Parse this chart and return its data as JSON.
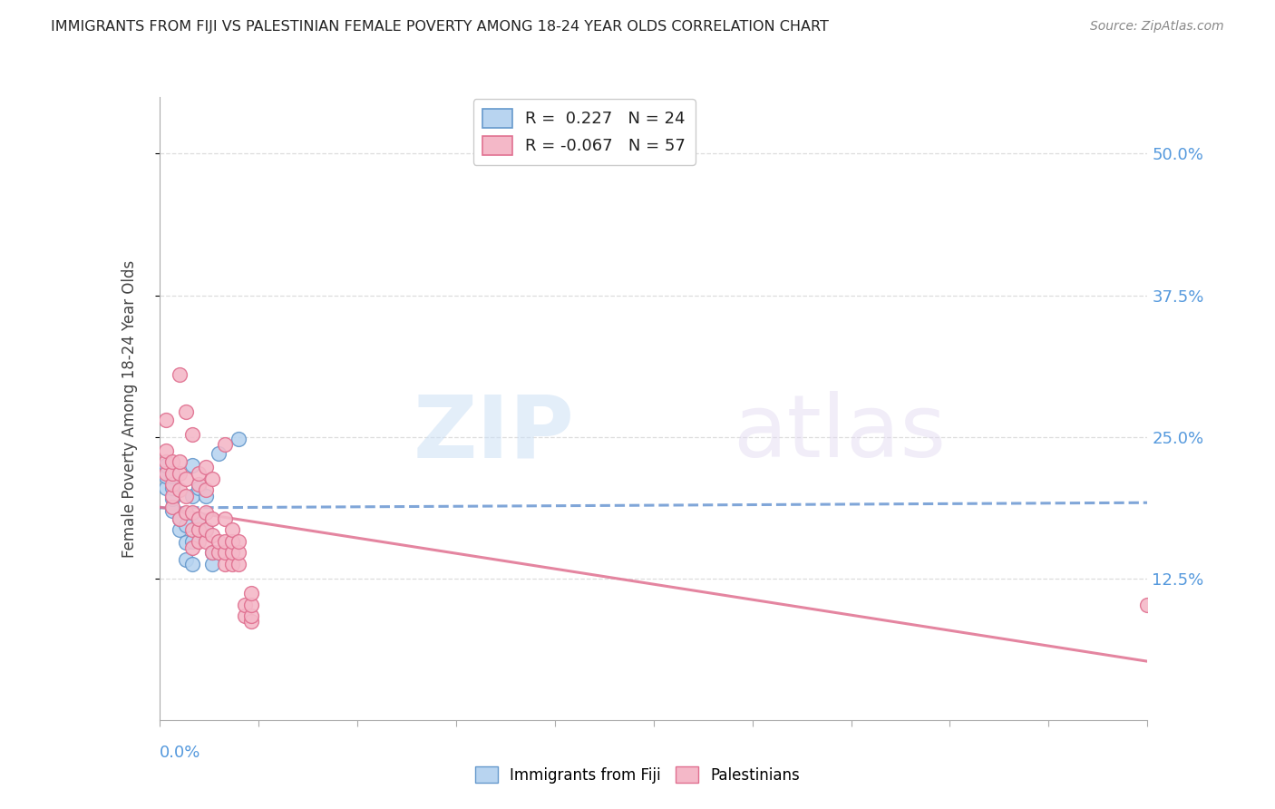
{
  "title": "IMMIGRANTS FROM FIJI VS PALESTINIAN FEMALE POVERTY AMONG 18-24 YEAR OLDS CORRELATION CHART",
  "source": "Source: ZipAtlas.com",
  "ylabel": "Female Poverty Among 18-24 Year Olds",
  "legend_fiji_r": "0.227",
  "legend_fiji_n": "24",
  "legend_pal_r": "-0.067",
  "legend_pal_n": "57",
  "fiji_color": "#b8d4f0",
  "fiji_edge_color": "#6699cc",
  "pal_color": "#f4b8c8",
  "pal_edge_color": "#e07090",
  "trend_fiji_color": "#5588cc",
  "trend_pal_color": "#e07090",
  "axis_label_color": "#5599dd",
  "xlim": [
    0.0,
    0.15
  ],
  "ylim": [
    0.0,
    0.55
  ],
  "ytick_values": [
    0.125,
    0.25,
    0.375,
    0.5
  ],
  "ytick_labels": [
    "12.5%",
    "25.0%",
    "37.5%",
    "50.0%"
  ],
  "fiji_x": [
    0.001,
    0.001,
    0.001,
    0.002,
    0.002,
    0.002,
    0.002,
    0.003,
    0.003,
    0.004,
    0.004,
    0.004,
    0.005,
    0.005,
    0.005,
    0.005,
    0.006,
    0.006,
    0.007,
    0.007,
    0.008,
    0.008,
    0.009,
    0.012
  ],
  "fiji_y": [
    0.205,
    0.215,
    0.225,
    0.185,
    0.195,
    0.205,
    0.215,
    0.168,
    0.178,
    0.142,
    0.157,
    0.172,
    0.138,
    0.158,
    0.198,
    0.225,
    0.178,
    0.205,
    0.168,
    0.198,
    0.138,
    0.148,
    0.235,
    0.248
  ],
  "pal_x": [
    0.001,
    0.001,
    0.001,
    0.001,
    0.002,
    0.002,
    0.002,
    0.002,
    0.002,
    0.003,
    0.003,
    0.003,
    0.003,
    0.003,
    0.004,
    0.004,
    0.004,
    0.004,
    0.005,
    0.005,
    0.005,
    0.005,
    0.006,
    0.006,
    0.006,
    0.006,
    0.006,
    0.007,
    0.007,
    0.007,
    0.007,
    0.007,
    0.008,
    0.008,
    0.008,
    0.008,
    0.009,
    0.009,
    0.01,
    0.01,
    0.01,
    0.01,
    0.01,
    0.011,
    0.011,
    0.011,
    0.011,
    0.012,
    0.012,
    0.012,
    0.013,
    0.013,
    0.014,
    0.014,
    0.014,
    0.014,
    0.15
  ],
  "pal_y": [
    0.218,
    0.228,
    0.238,
    0.265,
    0.188,
    0.198,
    0.208,
    0.218,
    0.228,
    0.178,
    0.203,
    0.218,
    0.228,
    0.305,
    0.183,
    0.198,
    0.213,
    0.272,
    0.152,
    0.168,
    0.183,
    0.252,
    0.158,
    0.168,
    0.178,
    0.208,
    0.218,
    0.158,
    0.168,
    0.183,
    0.203,
    0.223,
    0.148,
    0.163,
    0.178,
    0.213,
    0.148,
    0.158,
    0.138,
    0.148,
    0.158,
    0.178,
    0.243,
    0.138,
    0.148,
    0.158,
    0.168,
    0.138,
    0.148,
    0.158,
    0.092,
    0.102,
    0.087,
    0.092,
    0.102,
    0.112,
    0.102
  ]
}
